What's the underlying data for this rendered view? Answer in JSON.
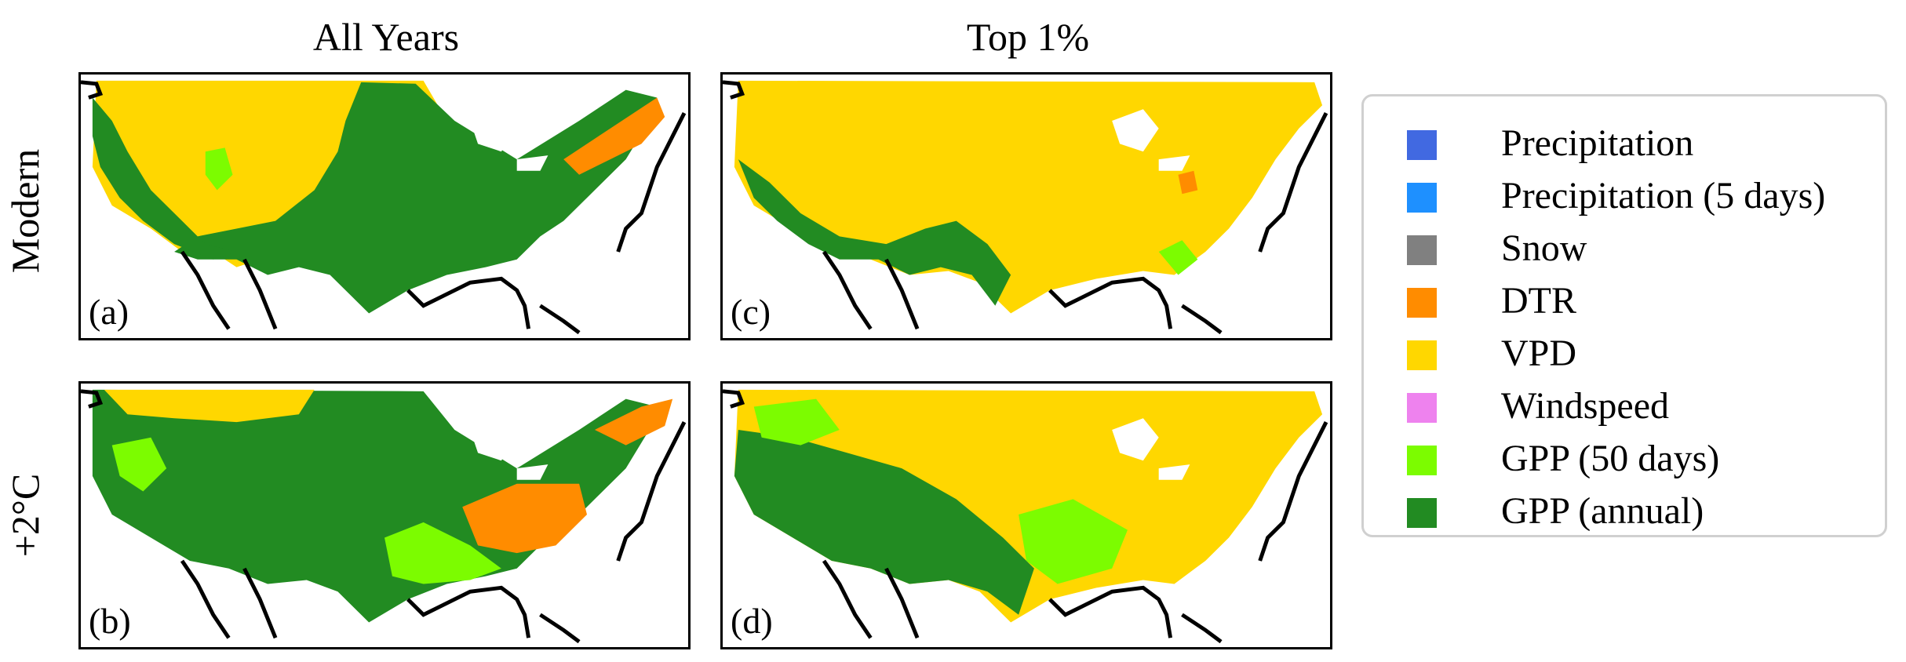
{
  "columns": {
    "left_title": "All Years",
    "right_title": "Top 1%"
  },
  "rows": {
    "top_label": "Modern",
    "bottom_label": "+2°C"
  },
  "panels": {
    "a": {
      "label": "(a)"
    },
    "b": {
      "label": "(b)"
    },
    "c": {
      "label": "(c)"
    },
    "d": {
      "label": "(d)"
    }
  },
  "legend": {
    "items": [
      {
        "label": "Precipitation",
        "color": "#4169E1"
      },
      {
        "label": "Precipitation (5 days)",
        "color": "#1E90FF"
      },
      {
        "label": "Snow",
        "color": "#808080"
      },
      {
        "label": "DTR",
        "color": "#FF8C00"
      },
      {
        "label": "VPD",
        "color": "#FFD700"
      },
      {
        "label": "Windspeed",
        "color": "#EE82EE"
      },
      {
        "label": "GPP (50 days)",
        "color": "#7CFC00"
      },
      {
        "label": "GPP (annual)",
        "color": "#228B22"
      }
    ]
  }
}
